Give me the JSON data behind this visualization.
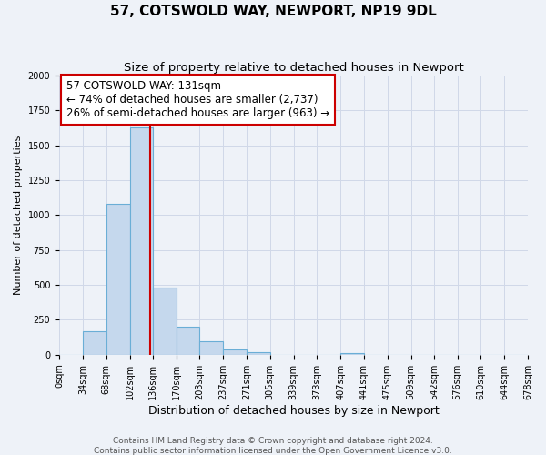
{
  "title": "57, COTSWOLD WAY, NEWPORT, NP19 9DL",
  "subtitle": "Size of property relative to detached houses in Newport",
  "xlabel": "Distribution of detached houses by size in Newport",
  "ylabel": "Number of detached properties",
  "bar_edges": [
    0,
    34,
    68,
    102,
    136,
    170,
    203,
    237,
    271,
    305,
    339,
    373,
    407,
    441,
    475,
    509,
    542,
    576,
    610,
    644,
    678
  ],
  "bar_heights": [
    0,
    170,
    1080,
    1630,
    480,
    200,
    100,
    35,
    20,
    0,
    0,
    0,
    15,
    0,
    0,
    0,
    0,
    0,
    0,
    0
  ],
  "bar_color": "#c5d8ed",
  "bar_edge_color": "#6aaed6",
  "vline_x": 131,
  "vline_color": "#cc0000",
  "ylim": [
    0,
    2000
  ],
  "xlim": [
    0,
    678
  ],
  "annotation_title": "57 COTSWOLD WAY: 131sqm",
  "annotation_line1": "← 74% of detached houses are smaller (2,737)",
  "annotation_line2": "26% of semi-detached houses are larger (963) →",
  "annotation_box_color": "#ffffff",
  "annotation_box_edge": "#cc0000",
  "tick_labels": [
    "0sqm",
    "34sqm",
    "68sqm",
    "102sqm",
    "136sqm",
    "170sqm",
    "203sqm",
    "237sqm",
    "271sqm",
    "305sqm",
    "339sqm",
    "373sqm",
    "407sqm",
    "441sqm",
    "475sqm",
    "509sqm",
    "542sqm",
    "576sqm",
    "610sqm",
    "644sqm",
    "678sqm"
  ],
  "grid_color": "#d0d8e8",
  "background_color": "#eef2f8",
  "footer1": "Contains HM Land Registry data © Crown copyright and database right 2024.",
  "footer2": "Contains public sector information licensed under the Open Government Licence v3.0.",
  "title_fontsize": 11,
  "subtitle_fontsize": 9.5,
  "xlabel_fontsize": 9,
  "ylabel_fontsize": 8,
  "tick_fontsize": 7,
  "footer_fontsize": 6.5,
  "ann_fontsize": 8.5
}
